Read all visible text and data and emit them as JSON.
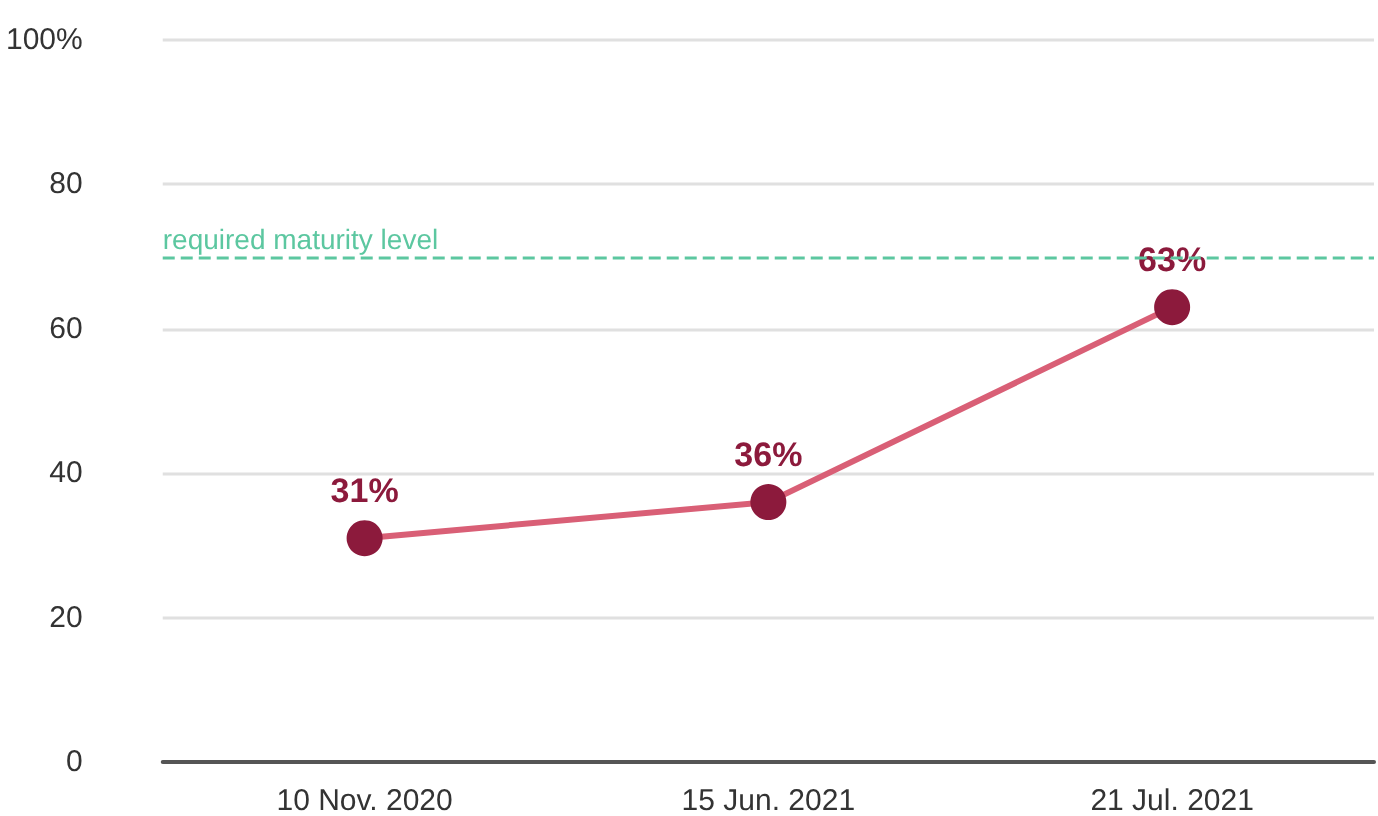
{
  "chart_data": {
    "type": "line",
    "categories": [
      "10 Nov. 2020",
      "15 Jun. 2021",
      "21 Jul. 2021"
    ],
    "series": [
      {
        "color": "#d95f76",
        "colors": [
          "#8c1a3c",
          "#8c1a3c",
          "#8c1a3c"
        ],
        "values": [
          31,
          36,
          63
        ],
        "value_labels": [
          "31%",
          "36%",
          "63%"
        ]
      }
    ],
    "ylim": [
      0,
      100
    ],
    "yticks": [
      0,
      20,
      40,
      60,
      80,
      {
        "value": 100,
        "label": "100%"
      }
    ],
    "ref_lines": [
      {
        "axis": "y",
        "value": 70,
        "label": "required maturity level",
        "color": "#5cc7a0",
        "line_style": "dashed"
      }
    ],
    "grid": "y",
    "marker": "circle",
    "line_style": "solid"
  }
}
